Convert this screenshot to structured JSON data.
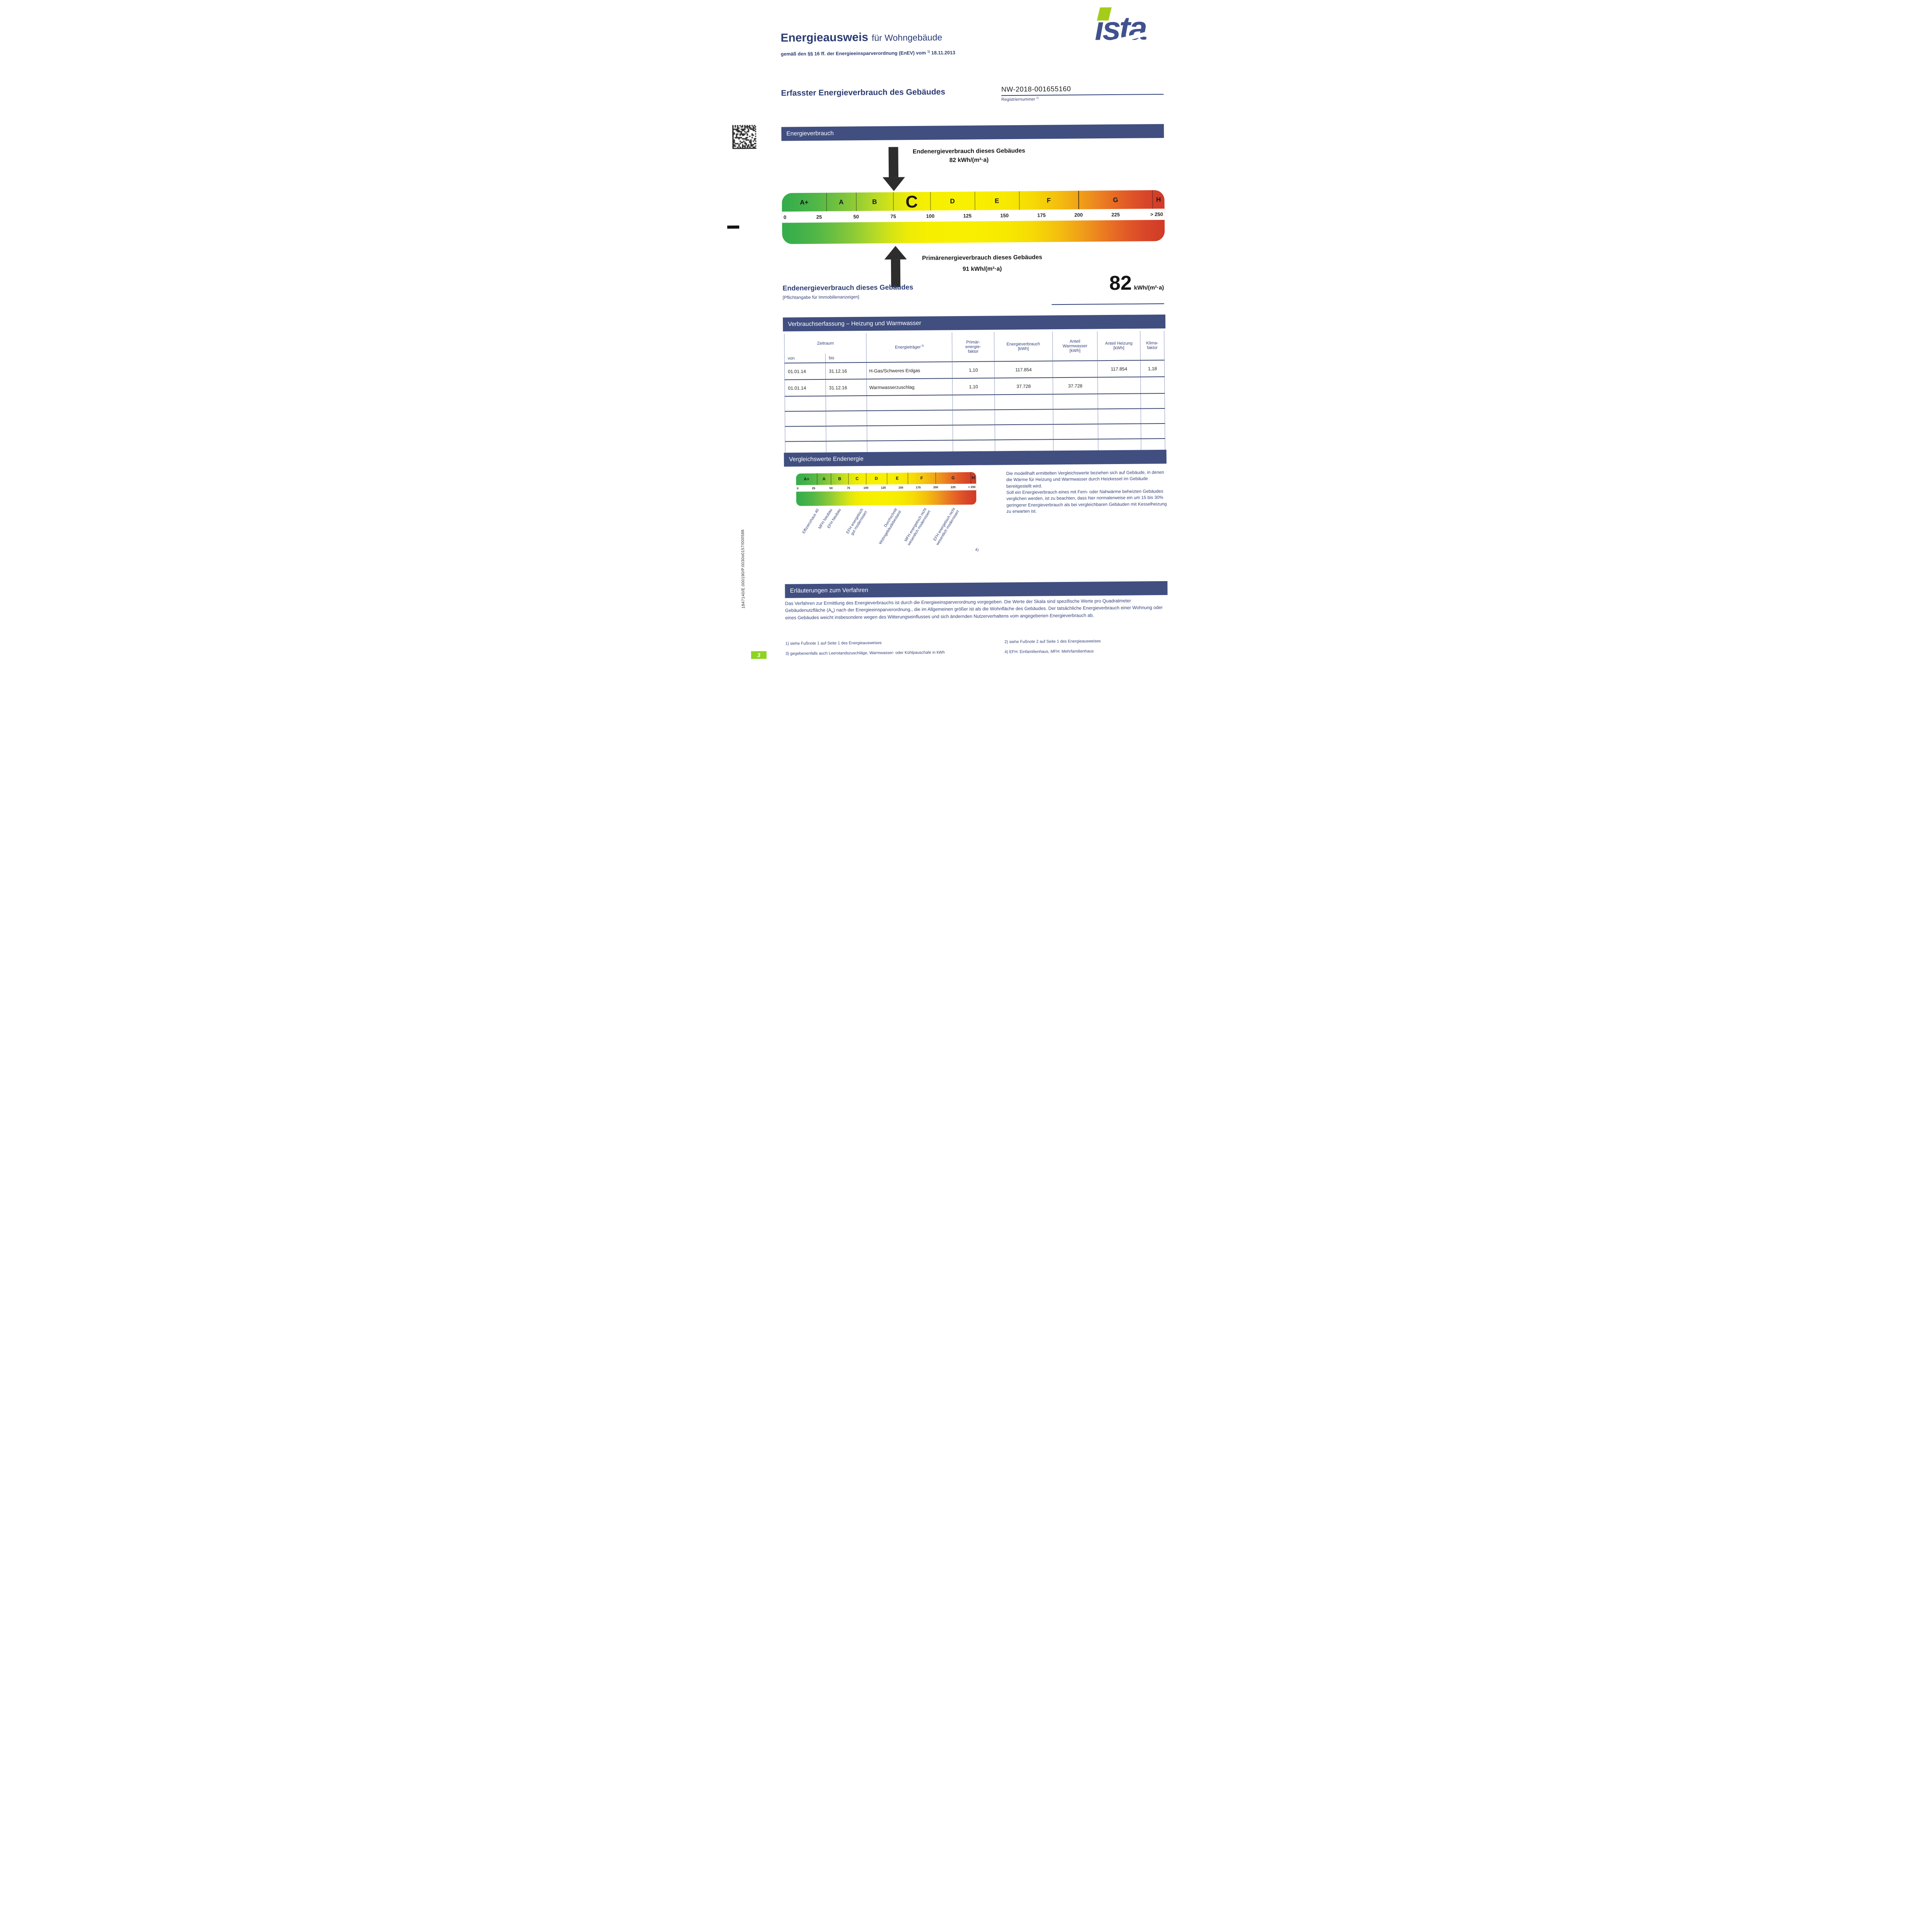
{
  "document": {
    "title_main": "Energieausweis",
    "title_sub": "für Wohngebäude",
    "subtitle_pre": "gemäß den §§ 16 ff. der Energieeinsparverordnung (EnEV) vom",
    "subtitle_sup": "1)",
    "subtitle_date": "18.11.2013",
    "brand": {
      "name": "ista",
      "logo_i": "ı",
      "logo_rest": "sta",
      "blue": "#41518e",
      "green": "#a6cc1b"
    },
    "side_code": "1847140/E.000190/P.0030o0157/000586",
    "page_badge": "3"
  },
  "header_section": {
    "title": "Erfasster Energieverbrauch des Gebäudes",
    "registration_number": "NW-2018-001655160",
    "registration_label": "Registriernummer",
    "registration_sup": "2)"
  },
  "section_bars": {
    "energieverbrauch": "Energieverbrauch",
    "verbrauchserfassung": "Verbrauchserfassung – Heizung und Warmwasser",
    "vergleichswerte": "Vergleichswerte Endenergie",
    "erlaeuterungen": "Erläuterungen zum Verfahren"
  },
  "scale": {
    "max": 258,
    "highlight_class": "C",
    "classes": [
      {
        "label": "A+",
        "from": 0,
        "to": 30
      },
      {
        "label": "A",
        "from": 30,
        "to": 50
      },
      {
        "label": "B",
        "from": 50,
        "to": 75
      },
      {
        "label": "C",
        "from": 75,
        "to": 100
      },
      {
        "label": "D",
        "from": 100,
        "to": 130
      },
      {
        "label": "E",
        "from": 130,
        "to": 160
      },
      {
        "label": "F",
        "from": 160,
        "to": 200
      },
      {
        "label": "G",
        "from": 200,
        "to": 250
      },
      {
        "label": "H",
        "from": 250,
        "to": 258
      }
    ],
    "ticks": [
      "0",
      "25",
      "50",
      "75",
      "100",
      "125",
      "150",
      "175",
      "200",
      "225",
      "> 250"
    ],
    "end_arrow": {
      "label": "Endenergieverbrauch dieses Gebäudes",
      "value_text": "82 kWh/(m²·a)",
      "value": 82
    },
    "primary_arrow": {
      "label": "Primärenergieverbrauch dieses Gebäudes",
      "value_text": "91 kWh/(m²·a)",
      "value": 91
    }
  },
  "endenergie_summary": {
    "heading": "Endenergieverbrauch dieses Gebäudes",
    "note": "[Pflichtangabe für Immobilienanzeigen]",
    "value": "82",
    "unit": "kWh/(m²·a)"
  },
  "consumption_table": {
    "group_header": "Zeitraum",
    "sub_headers": [
      "von",
      "bis"
    ],
    "energy_carrier_header": {
      "label": "Energieträger",
      "sup": "3)"
    },
    "col_headers": [
      "Primär-\nenergie-\nfaktor",
      "Energieverbrauch\n[kWh]",
      "Anteil\nWarmwasser\n[kWh]",
      "Anteil Heizung\n[kWh]",
      "Klima-\nfaktor"
    ],
    "rows": [
      [
        "01.01.14",
        "31.12.16",
        "H-Gas/Schweres Erdgas",
        "1,10",
        "117.854",
        "",
        "117.854",
        "1,18"
      ],
      [
        "01.01.14",
        "31.12.16",
        "Warmwasserzuschlag",
        "1,10",
        "37.728",
        "37.728",
        "",
        ""
      ]
    ],
    "empty_row_count": 4
  },
  "comparison": {
    "labels": [
      {
        "text": "Effizienzhaus 40",
        "at": 29
      },
      {
        "text": "MFH Neubau",
        "at": 48
      },
      {
        "text": "EFH Neubau",
        "at": 60
      },
      {
        "text": "EFH energetisch\ngut modernisiert",
        "at": 92
      },
      {
        "text": "Durchschnitt\nWohngebäudebestand",
        "at": 141
      },
      {
        "text": "MFH energetisch nicht\nwesentlich modernisiert",
        "at": 183
      },
      {
        "text": "EFH energetisch nicht\nwesentlich modernisiert",
        "at": 224
      }
    ],
    "footnote_marker": "4)",
    "paragraph1": "Die modellhaft ermittelten Vergleichswerte beziehen sich auf Gebäude, in denen die Wärme für Heizung und Warmwasser durch Heizkessel im Gebäude bereitgestellt wird.",
    "paragraph2": "Soll ein Energieverbrauch eines mit Fern- oder Nahwärme beheizten Gebäudes verglichen werden, ist zu beachten, dass hier normalerweise ein um 15 bis 30% geringerer Energieverbrauch als bei vergleichbaren Gebäuden mit Kesselheizung zu erwarten ist."
  },
  "explanation": {
    "text_before_sub": "Das Verfahren zur Ermittlung des Energieverbrauchs ist durch die Energieeinsparverordnung vorgegeben. Die Werte der Skala sind spezifische Werte pro Quadratmeter Gebäudenutzfläche (A",
    "sub": "N",
    "text_after_sub": ") nach der Energieeinsparverordnung., die im Allgemeinen größer ist als die Wohnfläche des Gebäudes. Der tatsächliche Energieverbrauch einer Wohnung oder eines Gebäudes weicht insbesondere wegen des Witterungseinflusses und sich ändernden Nutzerverhaltens vom angegebenen Energieverbrauch ab."
  },
  "footnotes": {
    "fn1": "1) siehe Fußnote 1 auf Seite 1 des Energieausweises",
    "fn2": "2) siehe Fußnote 2 auf Seite 1 des Energieausweises",
    "fn3": "3) gegebenenfalls auch Leerstandszuschläge, Warmwasser- oder Kühlpauschale in kWh",
    "fn4": "4) EFH: Einfamilienhaus, MFH: Mehrfamilienhaus"
  },
  "colors": {
    "bar_navy": "#414e80",
    "heading_blue": "#2c3c74",
    "body_blue": "#33427a",
    "scale_green": "#33ad4b",
    "scale_yellow": "#f8f000",
    "scale_red": "#cf3b28",
    "badge_green": "#8ed321",
    "brand_blue": "#41518e",
    "brand_green": "#a6cc1b"
  }
}
